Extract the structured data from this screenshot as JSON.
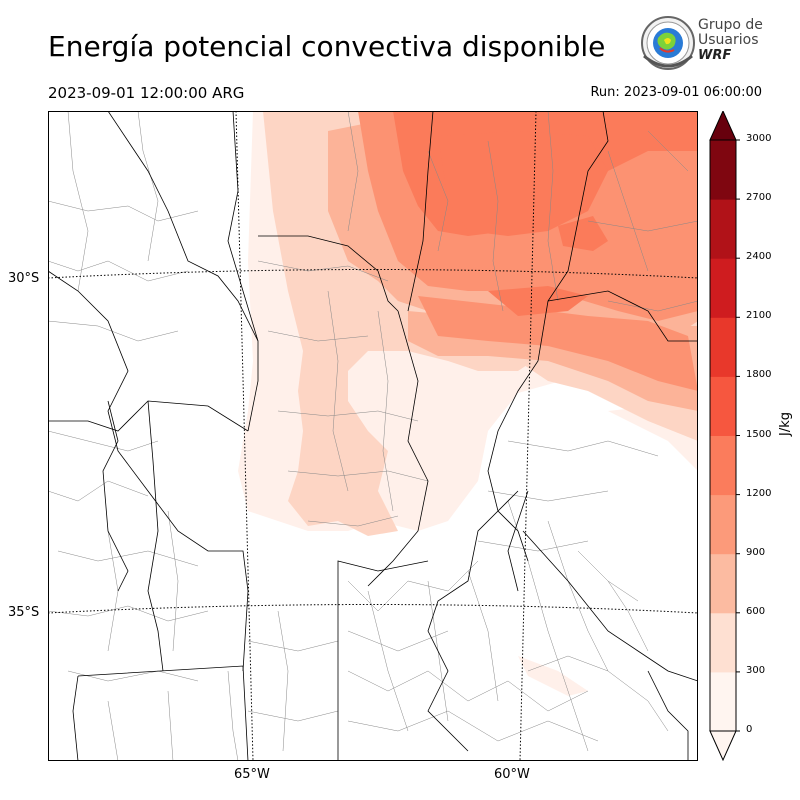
{
  "header": {
    "title": "Energía potencial convectiva disponible",
    "valid_time": "2023-09-01 12:00:00 ARG",
    "run_time": "Run: 2023-09-01 06:00:00"
  },
  "logo": {
    "line1": "Grupo de",
    "line2": "Usuarios",
    "line3": "WRF"
  },
  "map": {
    "lat_labels": [
      "30°S",
      "35°S"
    ],
    "lon_labels": [
      "65°W",
      "60°W"
    ],
    "variable": "CAPE",
    "colors": {
      "outline": "#000000",
      "subdivision": "#888888",
      "gridline": "#000000"
    }
  },
  "colorbar": {
    "unit": "J/kg",
    "ticks": [
      "0",
      "300",
      "600",
      "900",
      "1200",
      "1500",
      "1800",
      "2100",
      "2400",
      "2700",
      "3000"
    ],
    "levels": [
      0,
      150,
      300,
      450,
      600,
      750,
      900,
      1050,
      1200,
      1350,
      1500,
      1650,
      1800,
      1950,
      2100,
      2250,
      2400,
      2550,
      2700,
      2850,
      3000
    ],
    "colors": [
      "#fff5f0",
      "#fee0d2",
      "#fcbba1",
      "#fc9272",
      "#fb6a4a",
      "#ef3b2c",
      "#cb181d",
      "#a50f15",
      "#67000d"
    ],
    "extend": "both"
  }
}
